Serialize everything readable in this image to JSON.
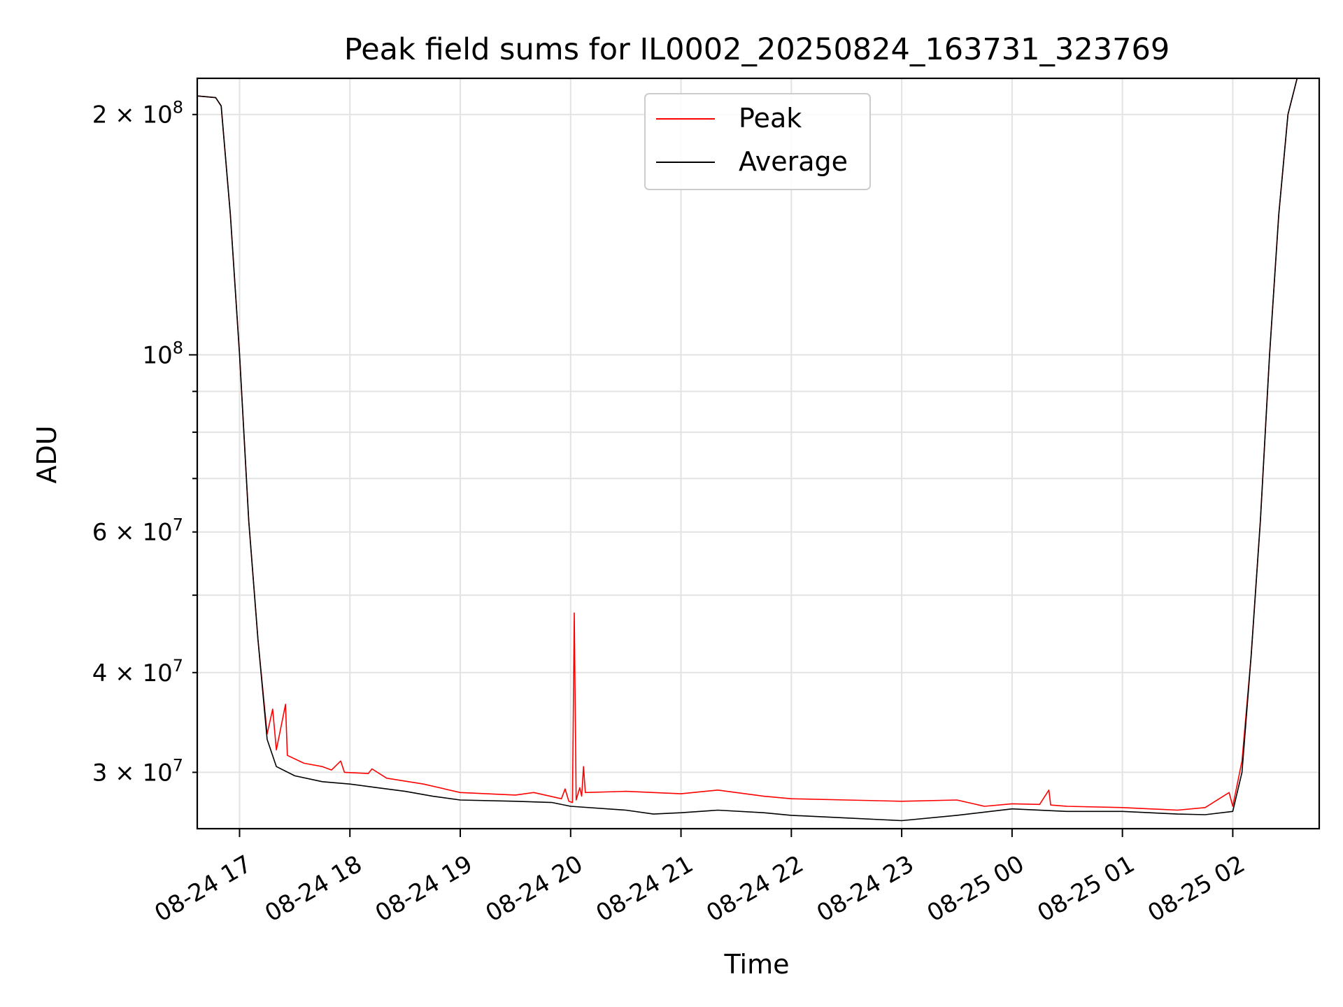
{
  "chart_data": {
    "type": "line",
    "title": "Peak field sums for IL0002_20250824_163731_323769",
    "xlabel": "Time",
    "ylabel": "ADU",
    "y_scale": "log",
    "ylim": [
      25500000,
      222000000
    ],
    "xlim": [
      "2025-08-24 16:37",
      "2025-08-25 02:47"
    ],
    "grid": true,
    "legend_position": "top-center",
    "x_ticks": [
      {
        "t": "2025-08-24 17:00",
        "label": "08-24 17"
      },
      {
        "t": "2025-08-24 18:00",
        "label": "08-24 18"
      },
      {
        "t": "2025-08-24 19:00",
        "label": "08-24 19"
      },
      {
        "t": "2025-08-24 20:00",
        "label": "08-24 20"
      },
      {
        "t": "2025-08-24 21:00",
        "label": "08-24 21"
      },
      {
        "t": "2025-08-24 22:00",
        "label": "08-24 22"
      },
      {
        "t": "2025-08-24 23:00",
        "label": "08-24 23"
      },
      {
        "t": "2025-08-25 00:00",
        "label": "08-25 00"
      },
      {
        "t": "2025-08-25 01:00",
        "label": "08-25 01"
      },
      {
        "t": "2025-08-25 02:00",
        "label": "08-25 02"
      }
    ],
    "y_ticks_major": [
      {
        "v": 100000000,
        "mant": "10",
        "exp": "8"
      }
    ],
    "y_ticks_minor": [
      {
        "v": 30000000,
        "mant": "3 × 10",
        "exp": "7"
      },
      {
        "v": 40000000,
        "mant": "4 × 10",
        "exp": "7"
      },
      {
        "v": 60000000,
        "mant": "6 × 10",
        "exp": "7"
      },
      {
        "v": 200000000,
        "mant": "2 × 10",
        "exp": "8"
      }
    ],
    "y_ticks_unlabeled": [
      50000000,
      70000000,
      80000000,
      90000000
    ],
    "series": [
      {
        "name": "Peak",
        "color": "#ff0000",
        "points": [
          [
            "2025-08-24 16:37",
            211000000
          ],
          [
            "2025-08-24 16:47",
            210000000
          ],
          [
            "2025-08-24 16:50",
            205000000
          ],
          [
            "2025-08-24 16:55",
            150000000
          ],
          [
            "2025-08-24 17:00",
            100000000
          ],
          [
            "2025-08-24 17:05",
            62000000
          ],
          [
            "2025-08-24 17:10",
            44000000
          ],
          [
            "2025-08-24 17:15",
            33500000
          ],
          [
            "2025-08-24 17:18",
            36000000
          ],
          [
            "2025-08-24 17:20",
            32000000
          ],
          [
            "2025-08-24 17:25",
            36500000
          ],
          [
            "2025-08-24 17:26",
            31500000
          ],
          [
            "2025-08-24 17:35",
            30800000
          ],
          [
            "2025-08-24 17:45",
            30500000
          ],
          [
            "2025-08-24 17:50",
            30200000
          ],
          [
            "2025-08-24 17:55",
            31000000
          ],
          [
            "2025-08-24 17:57",
            30000000
          ],
          [
            "2025-08-24 18:10",
            29900000
          ],
          [
            "2025-08-24 18:12",
            30300000
          ],
          [
            "2025-08-24 18:20",
            29500000
          ],
          [
            "2025-08-24 18:40",
            29000000
          ],
          [
            "2025-08-24 19:00",
            28300000
          ],
          [
            "2025-08-24 19:30",
            28100000
          ],
          [
            "2025-08-24 19:40",
            28300000
          ],
          [
            "2025-08-24 19:55",
            27800000
          ],
          [
            "2025-08-24 19:57",
            28600000
          ],
          [
            "2025-08-24 19:59",
            27600000
          ],
          [
            "2025-08-24 20:01",
            27500000
          ],
          [
            "2025-08-24 20:02",
            47500000
          ],
          [
            "2025-08-24 20:03",
            27700000
          ],
          [
            "2025-08-24 20:05",
            28700000
          ],
          [
            "2025-08-24 20:06",
            28000000
          ],
          [
            "2025-08-24 20:07",
            30500000
          ],
          [
            "2025-08-24 20:08",
            28300000
          ],
          [
            "2025-08-24 20:30",
            28400000
          ],
          [
            "2025-08-24 21:00",
            28200000
          ],
          [
            "2025-08-24 21:20",
            28500000
          ],
          [
            "2025-08-24 21:45",
            28000000
          ],
          [
            "2025-08-24 22:00",
            27800000
          ],
          [
            "2025-08-24 22:30",
            27700000
          ],
          [
            "2025-08-24 23:00",
            27600000
          ],
          [
            "2025-08-24 23:30",
            27700000
          ],
          [
            "2025-08-24 23:45",
            27200000
          ],
          [
            "2025-08-25 00:00",
            27400000
          ],
          [
            "2025-08-25 00:15",
            27350000
          ],
          [
            "2025-08-25 00:20",
            28500000
          ],
          [
            "2025-08-25 00:21",
            27300000
          ],
          [
            "2025-08-25 00:30",
            27200000
          ],
          [
            "2025-08-25 01:00",
            27100000
          ],
          [
            "2025-08-25 01:30",
            26900000
          ],
          [
            "2025-08-25 01:45",
            27100000
          ],
          [
            "2025-08-25 01:58",
            28300000
          ],
          [
            "2025-08-25 02:00",
            27200000
          ],
          [
            "2025-08-25 02:05",
            31000000
          ],
          [
            "2025-08-25 02:10",
            42000000
          ],
          [
            "2025-08-25 02:15",
            62000000
          ],
          [
            "2025-08-25 02:20",
            100000000
          ],
          [
            "2025-08-25 02:25",
            150000000
          ],
          [
            "2025-08-25 02:30",
            200000000
          ],
          [
            "2025-08-25 02:35",
            222000000
          ],
          [
            "2025-08-25 02:47",
            222000000
          ]
        ]
      },
      {
        "name": "Average",
        "color": "#000000",
        "points": [
          [
            "2025-08-24 16:37",
            211000000
          ],
          [
            "2025-08-24 16:47",
            210000000
          ],
          [
            "2025-08-24 16:50",
            205000000
          ],
          [
            "2025-08-24 16:55",
            150000000
          ],
          [
            "2025-08-24 17:00",
            100000000
          ],
          [
            "2025-08-24 17:05",
            62000000
          ],
          [
            "2025-08-24 17:10",
            44000000
          ],
          [
            "2025-08-24 17:15",
            33000000
          ],
          [
            "2025-08-24 17:20",
            30500000
          ],
          [
            "2025-08-24 17:30",
            29700000
          ],
          [
            "2025-08-24 17:45",
            29200000
          ],
          [
            "2025-08-24 18:00",
            29000000
          ],
          [
            "2025-08-24 18:15",
            28700000
          ],
          [
            "2025-08-24 18:30",
            28400000
          ],
          [
            "2025-08-24 18:45",
            28000000
          ],
          [
            "2025-08-24 19:00",
            27700000
          ],
          [
            "2025-08-24 19:30",
            27600000
          ],
          [
            "2025-08-24 19:50",
            27500000
          ],
          [
            "2025-08-24 20:00",
            27200000
          ],
          [
            "2025-08-24 20:30",
            26900000
          ],
          [
            "2025-08-24 20:45",
            26600000
          ],
          [
            "2025-08-24 21:00",
            26700000
          ],
          [
            "2025-08-24 21:20",
            26900000
          ],
          [
            "2025-08-24 21:45",
            26700000
          ],
          [
            "2025-08-24 22:00",
            26500000
          ],
          [
            "2025-08-24 22:30",
            26300000
          ],
          [
            "2025-08-24 23:00",
            26100000
          ],
          [
            "2025-08-24 23:30",
            26500000
          ],
          [
            "2025-08-25 00:00",
            27000000
          ],
          [
            "2025-08-25 00:30",
            26800000
          ],
          [
            "2025-08-25 01:00",
            26800000
          ],
          [
            "2025-08-25 01:30",
            26600000
          ],
          [
            "2025-08-25 01:45",
            26550000
          ],
          [
            "2025-08-25 02:00",
            26800000
          ],
          [
            "2025-08-25 02:05",
            30000000
          ],
          [
            "2025-08-25 02:10",
            42000000
          ],
          [
            "2025-08-25 02:15",
            62000000
          ],
          [
            "2025-08-25 02:20",
            100000000
          ],
          [
            "2025-08-25 02:25",
            150000000
          ],
          [
            "2025-08-25 02:30",
            200000000
          ],
          [
            "2025-08-25 02:35",
            222000000
          ],
          [
            "2025-08-25 02:47",
            222000000
          ]
        ]
      }
    ]
  }
}
